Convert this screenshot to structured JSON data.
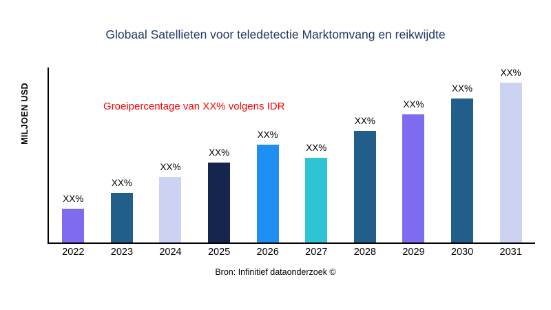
{
  "source": "Bron: Infinitief dataonderzoek ©",
  "colors": {
    "title": "#1f3864",
    "annotation": "#ff0000",
    "axis": "#000000",
    "background": "#ffffff"
  },
  "chart_data": {
    "type": "bar",
    "title": "Globaal Satellieten voor teledetectie Marktomvang en reikwijdte",
    "annotation": "Groeipercentage van XX% volgens IDR",
    "ylabel": "MILJOEN USD",
    "xlabel": "",
    "categories": [
      "2022",
      "2023",
      "2024",
      "2025",
      "2026",
      "2027",
      "2028",
      "2029",
      "2030",
      "2031"
    ],
    "values": [
      21,
      31,
      41,
      50,
      61,
      53,
      70,
      80,
      90,
      100
    ],
    "bar_labels": [
      "XX%",
      "XX%",
      "XX%",
      "XX%",
      "XX%",
      "XX%",
      "XX%",
      "XX%",
      "XX%",
      "XX%"
    ],
    "bar_colors": [
      "#7d6cf0",
      "#215e8a",
      "#ccd2f2",
      "#16254d",
      "#1e8ef5",
      "#2ec4d6",
      "#215e8a",
      "#7d6cf0",
      "#215e8a",
      "#ccd2f2"
    ],
    "ylim": [
      0,
      100
    ],
    "grid": false,
    "legend": "none"
  }
}
